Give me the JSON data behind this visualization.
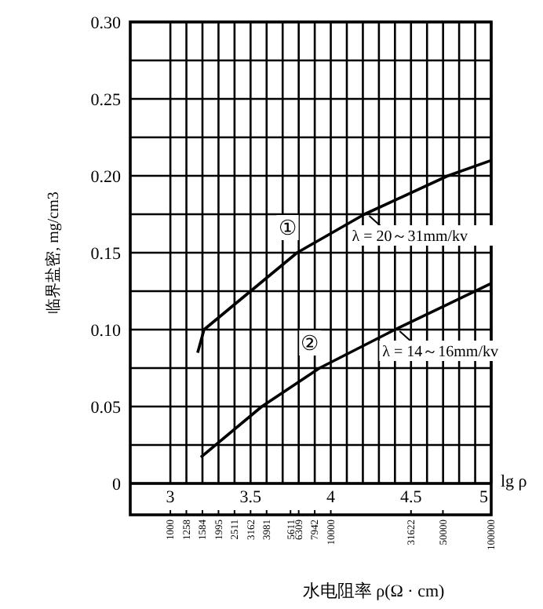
{
  "chart_data": {
    "type": "line",
    "xlabel": "lg ρ",
    "x2label": "水电阻率 ρ(Ω · cm)",
    "ylabel": "临界盐密, mg/cm3",
    "xlim": [
      2.75,
      5
    ],
    "xticks": [
      {
        "value": 3,
        "label": "3"
      },
      {
        "value": 3.1,
        "label": null
      },
      {
        "value": 3.2,
        "label": null
      },
      {
        "value": 3.3,
        "label": null
      },
      {
        "value": 3.4,
        "label": null
      },
      {
        "value": 3.5,
        "label": "3.5"
      },
      {
        "value": 3.6,
        "label": null
      },
      {
        "value": 3.7,
        "label": null
      },
      {
        "value": 3.8,
        "label": null
      },
      {
        "value": 3.9,
        "label": null
      },
      {
        "value": 4,
        "label": "4"
      },
      {
        "value": 4.1,
        "label": null
      },
      {
        "value": 4.2,
        "label": null
      },
      {
        "value": 4.3,
        "label": null
      },
      {
        "value": 4.4,
        "label": null
      },
      {
        "value": 4.5,
        "label": "4.5"
      },
      {
        "value": 4.6,
        "label": null
      },
      {
        "value": 4.7,
        "label": null
      },
      {
        "value": 4.8,
        "label": null
      },
      {
        "value": 4.9,
        "label": null
      },
      {
        "value": 5,
        "label": "5"
      }
    ],
    "x2lim": [
      562.3,
      100000
    ],
    "x2ticks": [
      1000,
      1258,
      1584,
      1995,
      2511,
      3162,
      3981,
      5611,
      6309,
      7942,
      10000,
      31622,
      50000,
      100000
    ],
    "log": "x2",
    "ylim": [
      0,
      0.3
    ],
    "yticks": [
      {
        "value": 0,
        "label": "0"
      },
      {
        "value": 0.025,
        "label": null
      },
      {
        "value": 0.05,
        "label": "0.05"
      },
      {
        "value": 0.075,
        "label": null
      },
      {
        "value": 0.1,
        "label": "0.10"
      },
      {
        "value": 0.125,
        "label": null
      },
      {
        "value": 0.15,
        "label": "0.15"
      },
      {
        "value": 0.175,
        "label": null
      },
      {
        "value": 0.2,
        "label": "0.20"
      },
      {
        "value": 0.225,
        "label": null
      },
      {
        "value": 0.25,
        "label": "0.25"
      },
      {
        "value": 0.275,
        "label": null
      },
      {
        "value": 0.3,
        "label": "0.30"
      }
    ],
    "grid": true,
    "line_style": "solid",
    "legend": "right",
    "series": [
      {
        "name": "λ = 20～31mm/kv",
        "color": "#000000",
        "x": [
          3.17,
          3.21,
          3.5,
          3.79,
          4.21,
          4.73,
          5.0
        ],
        "values": [
          0.085,
          0.1,
          0.125,
          0.15,
          0.175,
          0.2,
          0.21
        ]
      },
      {
        "name": "λ = 14～16mm/kv",
        "color": "#000000",
        "x": [
          3.19,
          3.57,
          3.93,
          4.4,
          4.7,
          5.0
        ],
        "values": [
          0.017,
          0.05,
          0.075,
          0.1,
          0.115,
          0.13
        ]
      }
    ],
    "annotations": [
      "①",
      "②"
    ]
  }
}
